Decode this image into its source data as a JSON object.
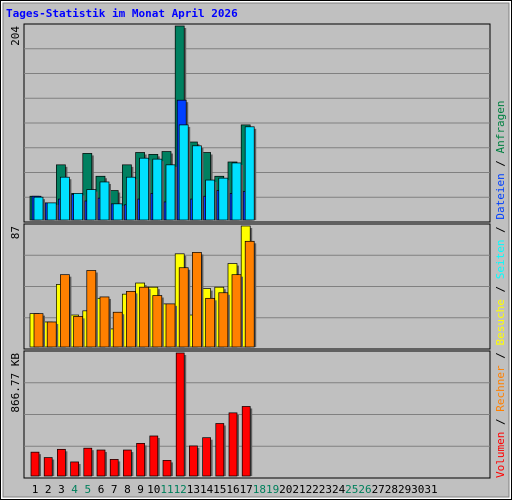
{
  "title": "Tages-Statistik im Monat April 2026",
  "legend": {
    "items": [
      {
        "label": "Volumen",
        "color": "#ff0000"
      },
      {
        "label": " / ",
        "color": "#000000"
      },
      {
        "label": "Rechner",
        "color": "#ff8000"
      },
      {
        "label": " / ",
        "color": "#000000"
      },
      {
        "label": "Besuche",
        "color": "#ffff00"
      },
      {
        "label": " / ",
        "color": "#000000"
      },
      {
        "label": "Seiten",
        "color": "#00ffff"
      },
      {
        "label": " / ",
        "color": "#000000"
      },
      {
        "label": "Dateien",
        "color": "#0040ff"
      },
      {
        "label": " / ",
        "color": "#000000"
      },
      {
        "label": "Anfragen",
        "color": "#008040"
      }
    ]
  },
  "colors": {
    "background": "#c0c0c0",
    "title": "#0000ff",
    "weekend_label": "#00805c",
    "hits": "#008060",
    "files": "#0040ff",
    "pages": "#00e0ff",
    "visits": "#ffff00",
    "sites": "#ff8000",
    "kbytes": "#ff0000"
  },
  "chart_data": [
    {
      "type": "bar",
      "name": "hits-files-pages",
      "ymax_label": "204",
      "ylim": [
        0,
        204
      ],
      "x": [
        "1",
        "2",
        "3",
        "4",
        "5",
        "6",
        "7",
        "8",
        "9",
        "10",
        "11",
        "12",
        "13",
        "14",
        "15",
        "16",
        "17",
        "18",
        "19",
        "20",
        "21",
        "22",
        "23",
        "24",
        "25",
        "26",
        "27",
        "28",
        "29",
        "30",
        "31"
      ],
      "weekend_days": [
        "4",
        "5",
        "11",
        "12",
        "18",
        "19",
        "25",
        "26"
      ],
      "series": [
        {
          "name": "Anfragen",
          "values": [
            25,
            18,
            58,
            28,
            70,
            46,
            31,
            58,
            71,
            69,
            72,
            204,
            82,
            71,
            46,
            61,
            100,
            0,
            0,
            0,
            0,
            0,
            0,
            0,
            0,
            0,
            0,
            0,
            0,
            0,
            0
          ]
        },
        {
          "name": "Dateien",
          "values": [
            25,
            18,
            22,
            27,
            20,
            23,
            17,
            16,
            22,
            28,
            19,
            126,
            22,
            25,
            31,
            28,
            30,
            0,
            0,
            0,
            0,
            0,
            0,
            0,
            0,
            0,
            0,
            0,
            0,
            0,
            0
          ]
        },
        {
          "name": "Seiten",
          "values": [
            24,
            18,
            45,
            28,
            32,
            40,
            17,
            45,
            65,
            64,
            58,
            100,
            78,
            42,
            44,
            60,
            98,
            0,
            0,
            0,
            0,
            0,
            0,
            0,
            0,
            0,
            0,
            0,
            0,
            0,
            0
          ]
        }
      ]
    },
    {
      "type": "bar",
      "name": "visits-sites",
      "ymax_label": "87",
      "ylim": [
        0,
        87
      ],
      "x": [
        "1",
        "2",
        "3",
        "4",
        "5",
        "6",
        "7",
        "8",
        "9",
        "10",
        "11",
        "12",
        "13",
        "14",
        "15",
        "16",
        "17"
      ],
      "series": [
        {
          "name": "Besuche",
          "values": [
            24,
            18,
            45,
            23,
            26,
            35,
            13,
            38,
            46,
            43,
            31,
            67,
            23,
            42,
            43,
            60,
            87
          ]
        },
        {
          "name": "Rechner",
          "values": [
            24,
            18,
            52,
            22,
            55,
            36,
            25,
            40,
            43,
            37,
            31,
            57,
            68,
            35,
            39,
            52,
            76
          ]
        }
      ]
    },
    {
      "type": "bar",
      "name": "kbytes",
      "ymax_label": "866.77 KB",
      "ylim": [
        0,
        866.77
      ],
      "x": [
        "1",
        "2",
        "3",
        "4",
        "5",
        "6",
        "7",
        "8",
        "9",
        "10",
        "11",
        "12",
        "13",
        "14",
        "15",
        "16",
        "17"
      ],
      "series": [
        {
          "name": "Volumen",
          "values": [
            168,
            130,
            188,
            99,
            196,
            183,
            117,
            183,
            230,
            282,
            110,
            866.77,
            212,
            270,
            370,
            445,
            490
          ]
        }
      ]
    }
  ]
}
